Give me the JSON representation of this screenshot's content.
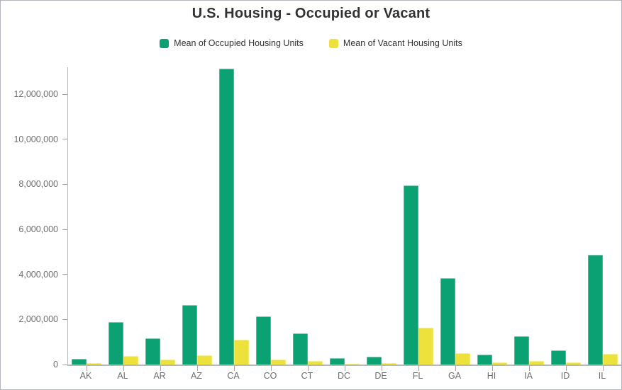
{
  "chart_data": {
    "type": "bar",
    "title": "U.S. Housing - Occupied or Vacant",
    "categories": [
      "AK",
      "AL",
      "AR",
      "AZ",
      "CA",
      "CO",
      "CT",
      "DC",
      "DE",
      "FL",
      "GA",
      "HI",
      "IA",
      "ID",
      "IL"
    ],
    "series": [
      {
        "name": "Mean of Occupied Housing Units",
        "color": "#0CA173",
        "values": [
          250000,
          1880000,
          1170000,
          2650000,
          13150000,
          2150000,
          1390000,
          290000,
          360000,
          7940000,
          3830000,
          450000,
          1260000,
          630000,
          4870000
        ]
      },
      {
        "name": "Mean of Vacant Housing Units",
        "color": "#EDE23B",
        "values": [
          70000,
          380000,
          210000,
          400000,
          1110000,
          230000,
          150000,
          35000,
          60000,
          1630000,
          490000,
          100000,
          150000,
          95000,
          480000
        ]
      }
    ],
    "xlabel": "",
    "ylabel": "",
    "ylim": [
      0,
      13200000
    ],
    "yticks": [
      0,
      2000000,
      4000000,
      6000000,
      8000000,
      10000000,
      12000000
    ],
    "ytick_labels": [
      "0",
      "2,000,000",
      "4,000,000",
      "6,000,000",
      "8,000,000",
      "10,000,000",
      "12,000,000"
    ],
    "grid": false,
    "legend_position": "top"
  },
  "colors": {
    "title_text": "#323232",
    "axis_text": "#6e6e6e",
    "axis_line": "#b8b8b8",
    "tick_line": "#a6a6a6",
    "frame_border": "#b5b5bd"
  }
}
